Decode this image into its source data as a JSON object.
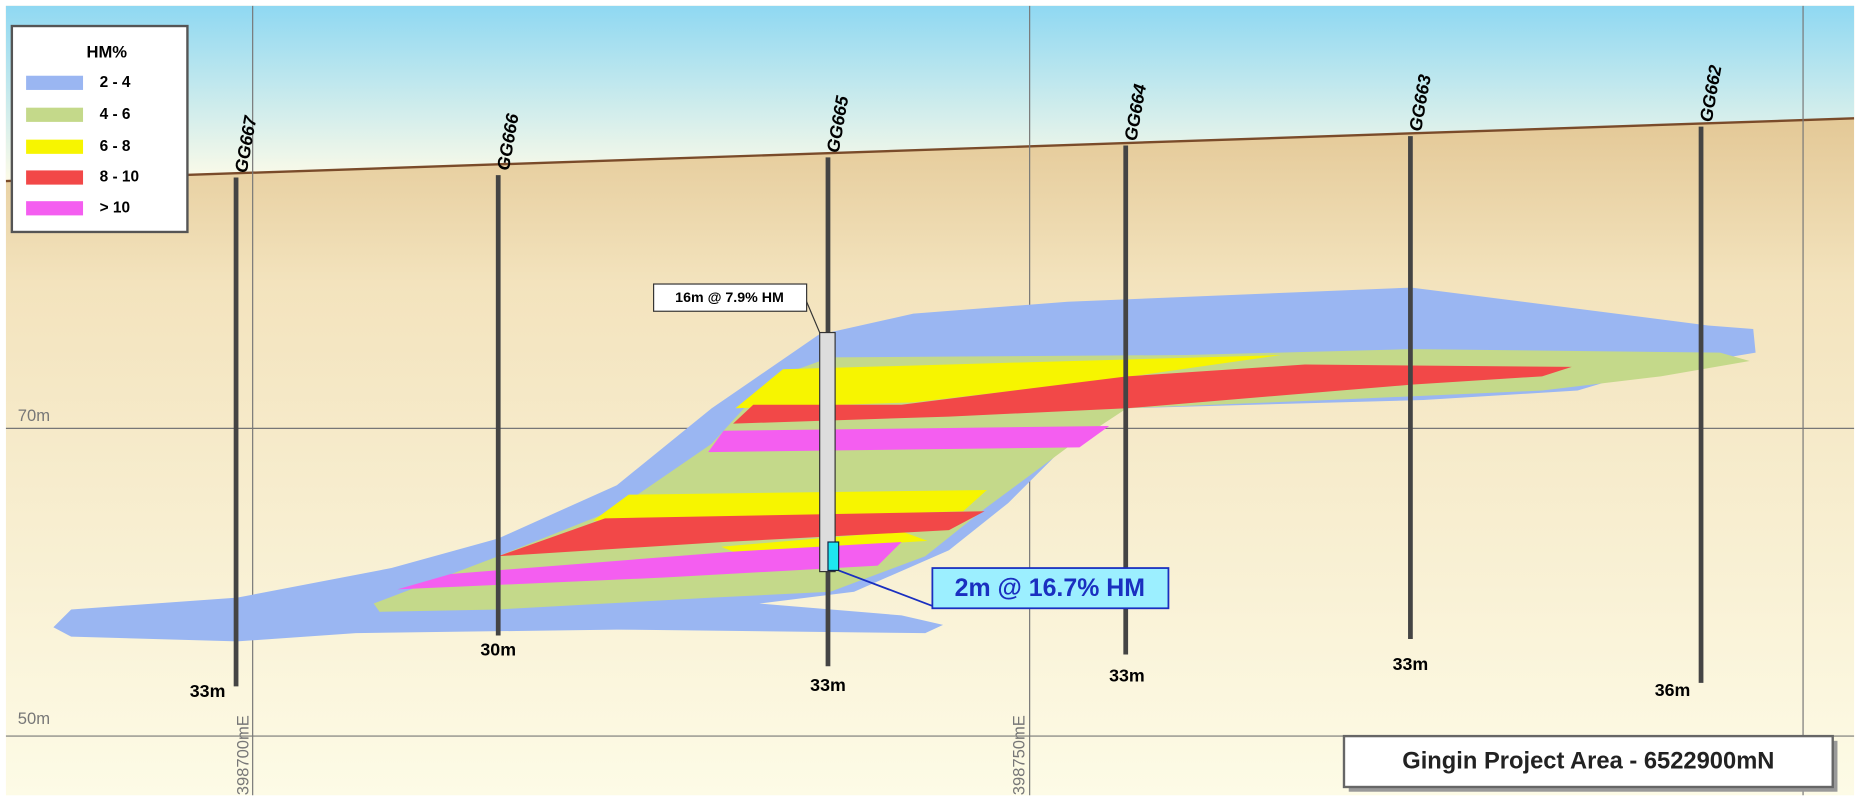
{
  "legend": {
    "title": "HM%",
    "items": [
      {
        "label": "2 - 4",
        "color": "#9ab6f2"
      },
      {
        "label": "4 - 6",
        "color": "#c4d98a"
      },
      {
        "label": "6 - 8",
        "color": "#f7f500"
      },
      {
        "label": "8 - 10",
        "color": "#f24848"
      },
      {
        "label": "> 10",
        "color": "#f45ef0"
      }
    ]
  },
  "grid": {
    "elevations": [
      "70m",
      "50m"
    ],
    "eastings": [
      "398700mE",
      "398750mE"
    ]
  },
  "holes": [
    {
      "name": "GG667",
      "depth": "33m"
    },
    {
      "name": "GG666",
      "depth": "30m"
    },
    {
      "name": "GG665",
      "depth": "33m"
    },
    {
      "name": "GG664",
      "depth": "33m"
    },
    {
      "name": "GG663",
      "depth": "33m"
    },
    {
      "name": "GG662",
      "depth": "36m"
    }
  ],
  "annotations": {
    "intercept": "16m @ 7.9% HM",
    "highlight": "2m @ 16.7% HM"
  },
  "title": "Gingin Project Area - 6522900mN"
}
